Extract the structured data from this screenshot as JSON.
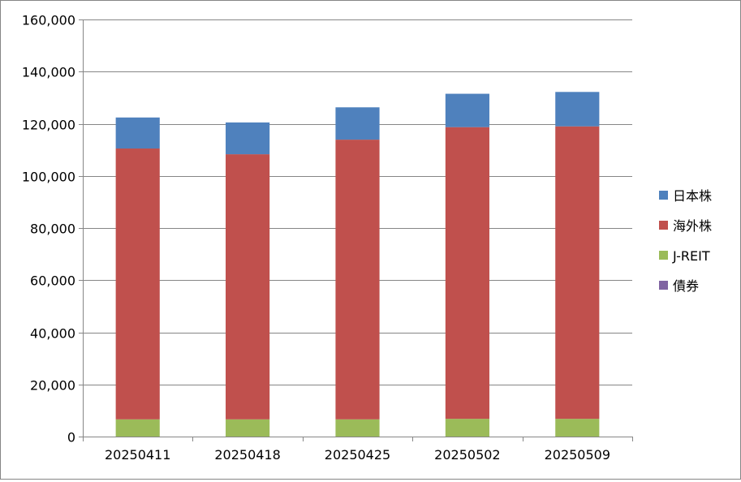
{
  "chart_data": {
    "type": "bar",
    "stacked": true,
    "categories": [
      "20250411",
      "20250418",
      "20250425",
      "20250502",
      "20250509"
    ],
    "series": [
      {
        "name": "債券",
        "color": "#8064A2",
        "values": [
          0,
          0,
          0,
          0,
          0
        ]
      },
      {
        "name": "J-REIT",
        "color": "#9BBB59",
        "values": [
          6600,
          6600,
          6600,
          6800,
          6800
        ]
      },
      {
        "name": "海外株",
        "color": "#C0504D",
        "values": [
          103900,
          101700,
          107300,
          111900,
          112200
        ]
      },
      {
        "name": "日本株",
        "color": "#4F81BD",
        "values": [
          11900,
          12200,
          12400,
          12800,
          13200
        ]
      }
    ],
    "legend_order": [
      "日本株",
      "海外株",
      "J-REIT",
      "債券"
    ],
    "ylim": [
      0,
      160000
    ],
    "yticks": [
      "0",
      "20,000",
      "40,000",
      "60,000",
      "80,000",
      "100,000",
      "120,000",
      "140,000",
      "160,000"
    ],
    "grid": true,
    "legend_position": "right",
    "title": "",
    "xlabel": "",
    "ylabel": ""
  }
}
